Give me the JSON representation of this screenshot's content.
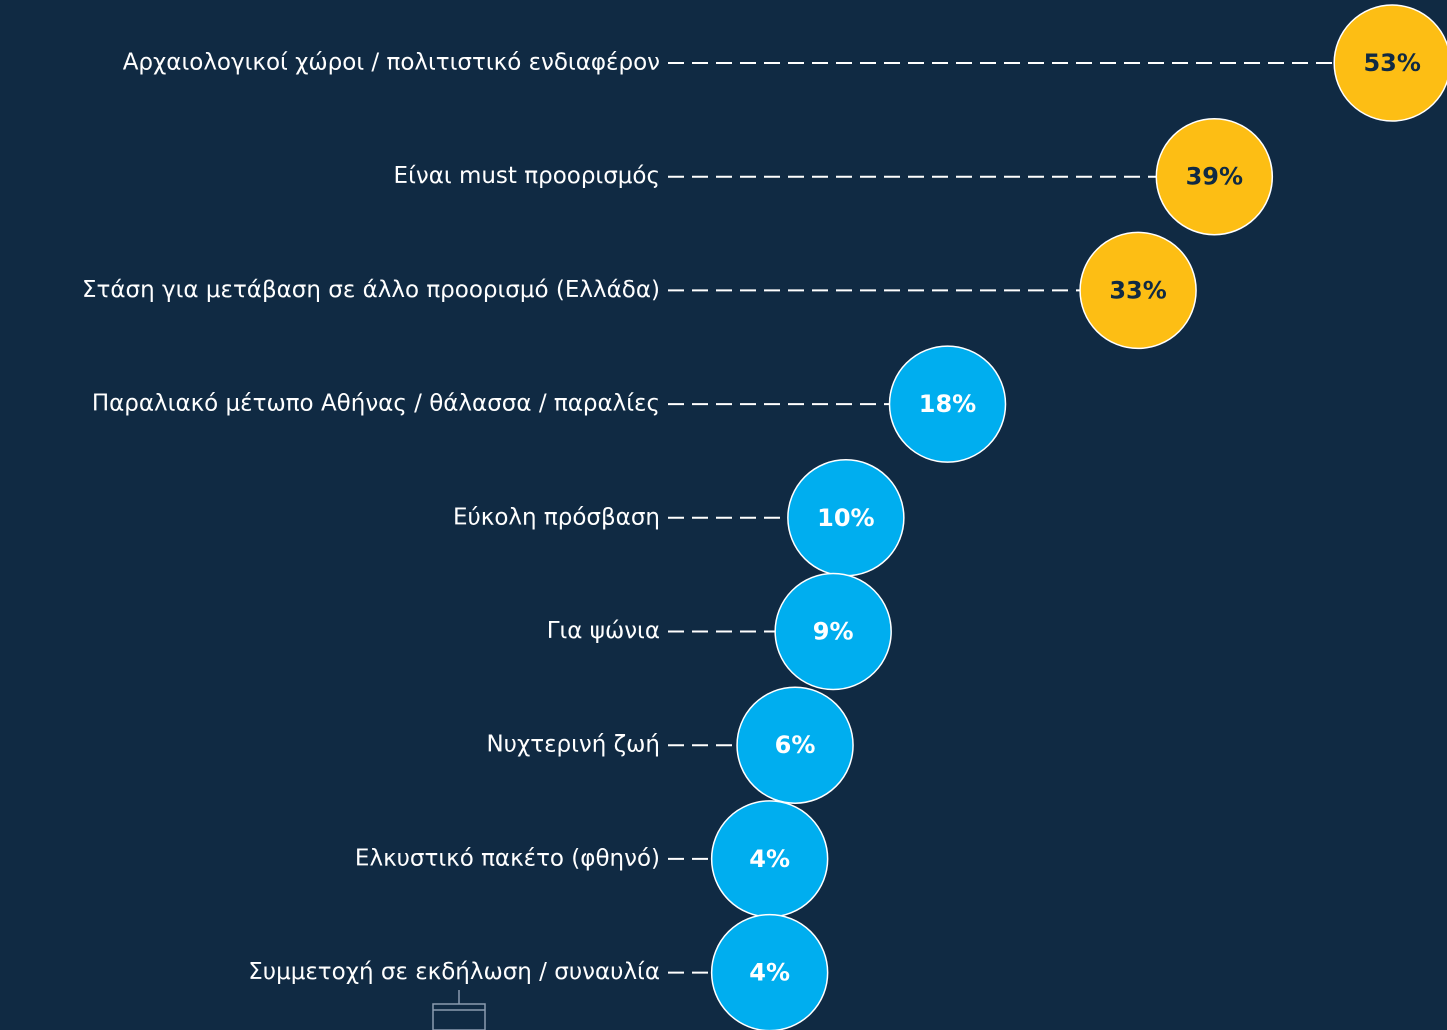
{
  "chart_data": {
    "type": "lollipop",
    "categories": [
      "Αρχαιολογικοί χώροι / πολιτιστικό ενδιαφέρον",
      "Είναι must προορισμός",
      "Στάση για μετάβαση σε άλλο προορισμό (Ελλάδα)",
      "Παραλιακό μέτωπο Αθήνας / θάλασσα / παραλίες",
      "Εύκολη πρόσβαση",
      "Για ψώνια",
      "Νυχτερινή ζωή",
      "Ελκυστικό πακέτο (φθηνό)",
      "Συμμετοχή σε εκδήλωση / συναυλία"
    ],
    "values": [
      53,
      39,
      33,
      18,
      10,
      9,
      6,
      4,
      4
    ],
    "value_labels": [
      "53%",
      "39%",
      "33%",
      "18%",
      "10%",
      "9%",
      "6%",
      "4%",
      "4%"
    ],
    "colors": [
      "#fdbe14",
      "#fdbe14",
      "#fdbe14",
      "#00aeef",
      "#00aeef",
      "#00aeef",
      "#00aeef",
      "#00aeef",
      "#00aeef"
    ],
    "label_colors": [
      "#102a43",
      "#102a43",
      "#102a43",
      "#ffffff",
      "#ffffff",
      "#ffffff",
      "#ffffff",
      "#ffffff",
      "#ffffff"
    ],
    "xlim": [
      -4,
      57
    ]
  }
}
